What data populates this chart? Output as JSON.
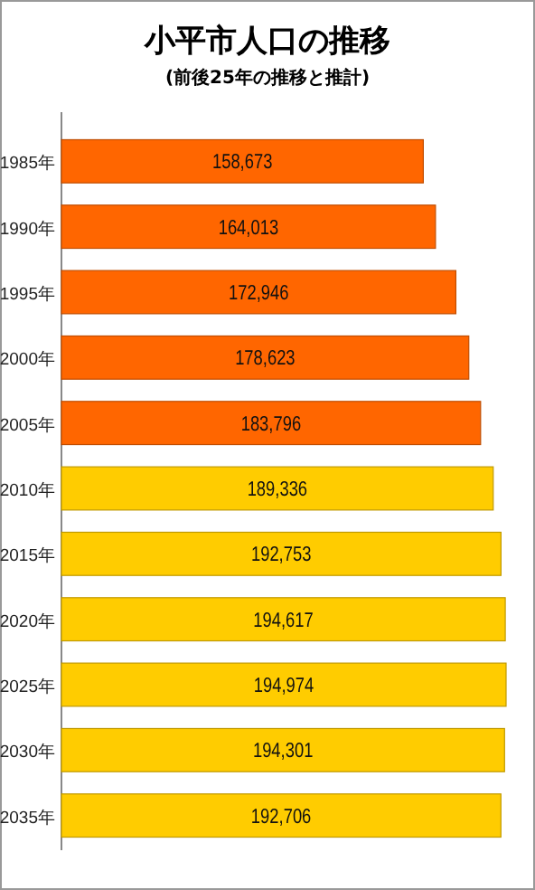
{
  "chart_data": {
    "type": "bar",
    "orientation": "horizontal",
    "title": "小平市人口の推移",
    "subtitle": "(前後25年の推移と推計)",
    "categories": [
      "1985年",
      "1990年",
      "1995年",
      "2000年",
      "2005年",
      "2010年",
      "2015年",
      "2020年",
      "2025年",
      "2030年",
      "2035年"
    ],
    "values": [
      158673,
      164013,
      172946,
      178623,
      183796,
      189336,
      192753,
      194617,
      194974,
      194301,
      192706
    ],
    "colors": [
      "#ff6600",
      "#ff6600",
      "#ff6600",
      "#ff6600",
      "#ff6600",
      "#ffcc00",
      "#ffcc00",
      "#ffcc00",
      "#ffcc00",
      "#ffcc00",
      "#ffcc00"
    ],
    "value_labels": [
      "158,673",
      "164,013",
      "172,946",
      "178,623",
      "183,796",
      "189,336",
      "192,753",
      "194,617",
      "194,974",
      "194,301",
      "192,706"
    ]
  }
}
